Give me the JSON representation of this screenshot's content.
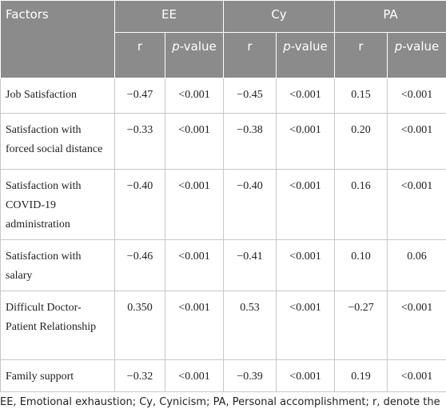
{
  "table": {
    "factor_header": "Factors",
    "groups": [
      "EE",
      "Cy",
      "PA"
    ],
    "subheaders": [
      {
        "label": "r"
      },
      {
        "italic": "p",
        "rest": "-value"
      },
      {
        "label": "r"
      },
      {
        "italic": "p",
        "rest": "-value"
      },
      {
        "label": "r"
      },
      {
        "italic": "p",
        "rest": "-value"
      }
    ],
    "rows": [
      [
        "Job Satisfaction",
        "−0.47",
        "<0.001",
        "−0.45",
        "<0.001",
        "0.15",
        "<0.001"
      ],
      [
        "Satisfaction with forced social distance",
        "−0.33",
        "<0.001",
        "−0.38",
        "<0.001",
        "0.20",
        "<0.001"
      ],
      [
        "Satisfaction with COVID-19 administration",
        "−0.40",
        "<0.001",
        "−0.40",
        "<0.001",
        "0.16",
        "<0.001"
      ],
      [
        "Satisfaction with salary",
        "−0.46",
        "<0.001",
        "−0.41",
        "<0.001",
        "0.10",
        "0.06"
      ],
      [
        "Difficult Doctor-Patient Relationship",
        "0.350",
        "<0.001",
        "0.53",
        "<0.001",
        "−0.27",
        "<0.001"
      ],
      [
        "Family support",
        "−0.32",
        "<0.001",
        "−0.39",
        "<0.001",
        "0.19",
        "<0.001"
      ]
    ],
    "footnote": "EE, Emotional exhaustion; Cy, Cynicism; PA, Personal accomplishment; r, denote the direction of the relationship."
  }
}
